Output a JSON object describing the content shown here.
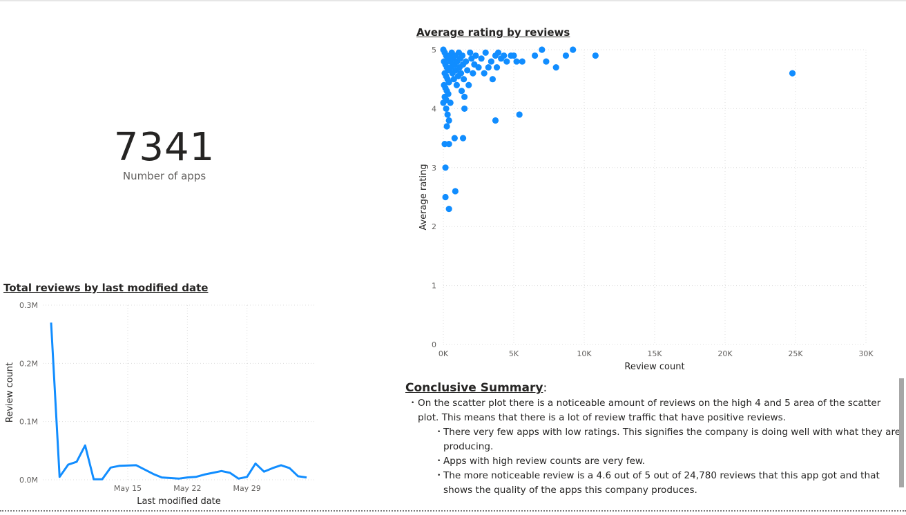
{
  "kpi": {
    "value": "7341",
    "label": "Number of apps"
  },
  "scatter": {
    "title": "Average rating by reviews",
    "chart_data": {
      "type": "scatter",
      "title": "Average rating by reviews",
      "xlabel": "Review count",
      "ylabel": "Average rating",
      "xlim": [
        0,
        30000
      ],
      "ylim": [
        0,
        5
      ],
      "x_ticks": [
        "0K",
        "5K",
        "10K",
        "15K",
        "20K",
        "25K",
        "30K"
      ],
      "y_ticks": [
        "0",
        "1",
        "2",
        "3",
        "4",
        "5"
      ],
      "grid": true,
      "color": "#118dff",
      "points": [
        {
          "x": 0,
          "y": 5
        },
        {
          "x": 100,
          "y": 4.95
        },
        {
          "x": 200,
          "y": 4.9
        },
        {
          "x": 300,
          "y": 4.85
        },
        {
          "x": 50,
          "y": 4.8
        },
        {
          "x": 150,
          "y": 4.75
        },
        {
          "x": 250,
          "y": 4.7
        },
        {
          "x": 350,
          "y": 4.65
        },
        {
          "x": 100,
          "y": 4.6
        },
        {
          "x": 200,
          "y": 4.55
        },
        {
          "x": 300,
          "y": 4.5
        },
        {
          "x": 400,
          "y": 4.45
        },
        {
          "x": 50,
          "y": 4.4
        },
        {
          "x": 150,
          "y": 4.35
        },
        {
          "x": 250,
          "y": 4.3
        },
        {
          "x": 350,
          "y": 4.25
        },
        {
          "x": 100,
          "y": 4.2
        },
        {
          "x": 200,
          "y": 4.15
        },
        {
          "x": 0,
          "y": 4.1
        },
        {
          "x": 450,
          "y": 4.9
        },
        {
          "x": 500,
          "y": 4.8
        },
        {
          "x": 550,
          "y": 4.7
        },
        {
          "x": 600,
          "y": 4.95
        },
        {
          "x": 650,
          "y": 4.6
        },
        {
          "x": 700,
          "y": 4.85
        },
        {
          "x": 750,
          "y": 4.5
        },
        {
          "x": 800,
          "y": 4.75
        },
        {
          "x": 850,
          "y": 4.9
        },
        {
          "x": 900,
          "y": 4.65
        },
        {
          "x": 950,
          "y": 4.4
        },
        {
          "x": 1000,
          "y": 4.8
        },
        {
          "x": 1050,
          "y": 4.55
        },
        {
          "x": 1100,
          "y": 4.95
        },
        {
          "x": 1150,
          "y": 4.7
        },
        {
          "x": 1200,
          "y": 4.85
        },
        {
          "x": 1250,
          "y": 4.6
        },
        {
          "x": 1300,
          "y": 4.3
        },
        {
          "x": 1350,
          "y": 4.9
        },
        {
          "x": 1400,
          "y": 4.75
        },
        {
          "x": 1450,
          "y": 4.5
        },
        {
          "x": 1500,
          "y": 4.2
        },
        {
          "x": 1600,
          "y": 4.8
        },
        {
          "x": 1700,
          "y": 4.65
        },
        {
          "x": 1800,
          "y": 4.4
        },
        {
          "x": 1900,
          "y": 4.95
        },
        {
          "x": 2000,
          "y": 4.85
        },
        {
          "x": 2100,
          "y": 4.6
        },
        {
          "x": 2200,
          "y": 4.75
        },
        {
          "x": 2300,
          "y": 4.9
        },
        {
          "x": 2500,
          "y": 4.7
        },
        {
          "x": 2700,
          "y": 4.85
        },
        {
          "x": 2900,
          "y": 4.6
        },
        {
          "x": 3000,
          "y": 4.95
        },
        {
          "x": 3200,
          "y": 4.7
        },
        {
          "x": 3400,
          "y": 4.8
        },
        {
          "x": 3500,
          "y": 4.5
        },
        {
          "x": 3700,
          "y": 4.9
        },
        {
          "x": 3800,
          "y": 4.7
        },
        {
          "x": 3900,
          "y": 4.95
        },
        {
          "x": 4100,
          "y": 4.85
        },
        {
          "x": 4300,
          "y": 4.9
        },
        {
          "x": 4500,
          "y": 4.8
        },
        {
          "x": 4800,
          "y": 4.9
        },
        {
          "x": 5000,
          "y": 4.9
        },
        {
          "x": 5200,
          "y": 4.8
        },
        {
          "x": 5600,
          "y": 4.8
        },
        {
          "x": 6500,
          "y": 4.9
        },
        {
          "x": 7000,
          "y": 5
        },
        {
          "x": 7300,
          "y": 4.8
        },
        {
          "x": 8000,
          "y": 4.7
        },
        {
          "x": 8700,
          "y": 4.9
        },
        {
          "x": 9200,
          "y": 5
        },
        {
          "x": 10800,
          "y": 4.9
        },
        {
          "x": 24780,
          "y": 4.6
        },
        {
          "x": 200,
          "y": 4.0
        },
        {
          "x": 500,
          "y": 4.1
        },
        {
          "x": 300,
          "y": 3.9
        },
        {
          "x": 400,
          "y": 3.8
        },
        {
          "x": 250,
          "y": 3.7
        },
        {
          "x": 1500,
          "y": 4.0
        },
        {
          "x": 5400,
          "y": 3.9
        },
        {
          "x": 3700,
          "y": 3.8
        },
        {
          "x": 100,
          "y": 3.4
        },
        {
          "x": 400,
          "y": 3.4
        },
        {
          "x": 800,
          "y": 3.5
        },
        {
          "x": 1400,
          "y": 3.5
        },
        {
          "x": 150,
          "y": 3.0
        },
        {
          "x": 850,
          "y": 2.6
        },
        {
          "x": 150,
          "y": 2.5
        },
        {
          "x": 400,
          "y": 2.3
        }
      ]
    }
  },
  "line": {
    "title": "Total reviews by last modified date",
    "chart_data": {
      "type": "line",
      "title": "Total reviews by last modified date",
      "xlabel": "Last modified date",
      "ylabel": "Review count",
      "ylim": [
        0,
        300000
      ],
      "y_ticks": [
        "0.0M",
        "0.1M",
        "0.2M",
        "0.3M"
      ],
      "x_ticks": [
        "May 15",
        "May 22",
        "May 29"
      ],
      "x_tick_dates": [
        "2023-05-15",
        "2023-05-22",
        "2023-05-29"
      ],
      "grid": true,
      "color": "#118dff",
      "x": [
        "2023-05-06",
        "2023-05-07",
        "2023-05-08",
        "2023-05-09",
        "2023-05-10",
        "2023-05-11",
        "2023-05-12",
        "2023-05-13",
        "2023-05-14",
        "2023-05-16",
        "2023-05-18",
        "2023-05-19",
        "2023-05-21",
        "2023-05-22",
        "2023-05-23",
        "2023-05-24",
        "2023-05-25",
        "2023-05-26",
        "2023-05-27",
        "2023-05-28",
        "2023-05-29",
        "2023-05-30",
        "2023-05-31",
        "2023-06-01",
        "2023-06-02",
        "2023-06-03",
        "2023-06-04",
        "2023-06-05"
      ],
      "series": [
        {
          "values": [
            270000,
            5000,
            26000,
            31000,
            59000,
            1000,
            1000,
            21000,
            24000,
            25000,
            10000,
            4000,
            2000,
            4000,
            5000,
            9000,
            12000,
            15000,
            12000,
            2000,
            5000,
            28000,
            14000,
            20000,
            25000,
            20000,
            6000,
            4000
          ]
        }
      ]
    }
  },
  "summary": {
    "heading": "Conclusive Summary",
    "colon": ":",
    "p1": "On the scatter plot there is a noticeable amount of reviews on the high 4 and 5 area of the scatter plot. This means that there is a lot of review traffic that have positive reviews.",
    "b1": "There very few apps with low ratings. This signifies the company is doing well with what they are producing.",
    "b2": "Apps with high review counts are very few.",
    "b3": "The more noticeable review is a 4.6 out of 5 out of 24,780 reviews that this app got and that shows the quality of the apps this company produces."
  }
}
